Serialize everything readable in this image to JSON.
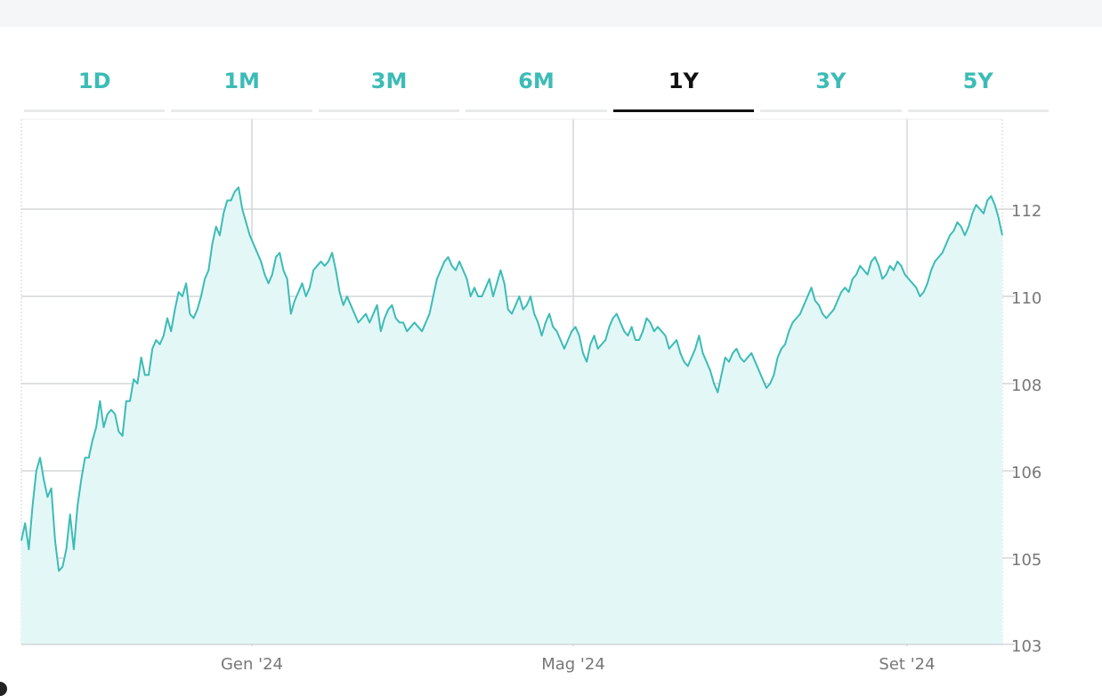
{
  "ranges": {
    "items": [
      "1D",
      "1M",
      "3M",
      "6M",
      "1Y",
      "3Y",
      "5Y"
    ],
    "active": "1Y"
  },
  "colors": {
    "line": "#3cbcb6",
    "fill": "#e4f7f7",
    "grid": "#d4d6d8",
    "axis_text": "#777777",
    "active_tab": "#111111",
    "inactive_tab": "#3cbcb6"
  },
  "chart_data": {
    "type": "area",
    "x_ticks": [
      "Gen '24",
      "Mag '24",
      "Set '24"
    ],
    "y_ticks": [
      103,
      105,
      106,
      108,
      110,
      112
    ],
    "y_axis_position": "right",
    "grid": true,
    "series": [
      {
        "values": [
          105.2,
          105.4,
          105.1,
          105.6,
          106.0,
          106.3,
          105.9,
          105.7,
          105.8,
          105.2,
          104.7,
          104.8,
          105.1,
          105.5,
          105.1,
          105.6,
          105.9,
          106.3,
          106.3,
          106.7,
          107.0,
          107.6,
          107.0,
          107.3,
          107.4,
          107.3,
          106.9,
          106.8,
          107.6,
          107.6,
          108.1,
          108.0,
          108.6,
          108.2,
          108.2,
          108.8,
          109.0,
          108.9,
          109.1,
          109.5,
          109.2,
          109.7,
          110.1,
          110.0,
          110.3,
          109.6,
          109.5,
          109.7,
          110.0,
          110.4,
          110.6,
          111.2,
          111.6,
          111.4,
          111.9,
          112.2,
          112.2,
          112.4,
          112.5,
          112.0,
          111.7,
          111.4,
          111.2,
          111.0,
          110.8,
          110.5,
          110.3,
          110.5,
          110.9,
          111.0,
          110.6,
          110.4,
          109.6,
          109.9,
          110.1,
          110.3,
          110.0,
          110.2,
          110.6,
          110.7,
          110.8,
          110.7,
          110.8,
          111.0,
          110.6,
          110.1,
          109.8,
          110.0,
          109.8,
          109.6,
          109.4,
          109.5,
          109.6,
          109.4,
          109.6,
          109.8,
          109.2,
          109.5,
          109.7,
          109.8,
          109.5,
          109.4,
          109.4,
          109.2,
          109.3,
          109.4,
          109.3,
          109.2,
          109.4,
          109.6,
          110.0,
          110.4,
          110.6,
          110.8,
          110.9,
          110.7,
          110.6,
          110.8,
          110.6,
          110.4,
          110.0,
          110.2,
          110.0,
          110.0,
          110.2,
          110.4,
          110.0,
          110.3,
          110.6,
          110.3,
          109.7,
          109.6,
          109.8,
          110.0,
          109.7,
          109.8,
          110.0,
          109.6,
          109.4,
          109.1,
          109.4,
          109.6,
          109.3,
          109.2,
          109.0,
          108.8,
          109.0,
          109.2,
          109.3,
          109.1,
          108.7,
          108.5,
          108.9,
          109.1,
          108.8,
          108.9,
          109.0,
          109.3,
          109.5,
          109.6,
          109.4,
          109.2,
          109.1,
          109.3,
          109.0,
          109.0,
          109.2,
          109.5,
          109.4,
          109.2,
          109.3,
          109.2,
          109.1,
          108.8,
          108.9,
          109.0,
          108.7,
          108.5,
          108.4,
          108.6,
          108.8,
          109.1,
          108.7,
          108.5,
          108.3,
          108.0,
          107.8,
          108.2,
          108.6,
          108.5,
          108.7,
          108.8,
          108.6,
          108.5,
          108.6,
          108.7,
          108.5,
          108.3,
          108.1,
          107.9,
          108.0,
          108.2,
          108.6,
          108.8,
          108.9,
          109.2,
          109.4,
          109.5,
          109.6,
          109.8,
          110.0,
          110.2,
          109.9,
          109.8,
          109.6,
          109.5,
          109.6,
          109.7,
          109.9,
          110.1,
          110.2,
          110.1,
          110.4,
          110.5,
          110.7,
          110.6,
          110.5,
          110.8,
          110.9,
          110.7,
          110.4,
          110.5,
          110.7,
          110.6,
          110.8,
          110.7,
          110.5,
          110.4,
          110.3,
          110.2,
          110.0,
          110.1,
          110.3,
          110.6,
          110.8,
          110.9,
          111.0,
          111.2,
          111.4,
          111.5,
          111.7,
          111.6,
          111.4,
          111.6,
          111.9,
          112.1,
          112.0,
          111.9,
          112.2,
          112.3,
          112.1,
          111.8,
          111.4
        ]
      }
    ]
  }
}
